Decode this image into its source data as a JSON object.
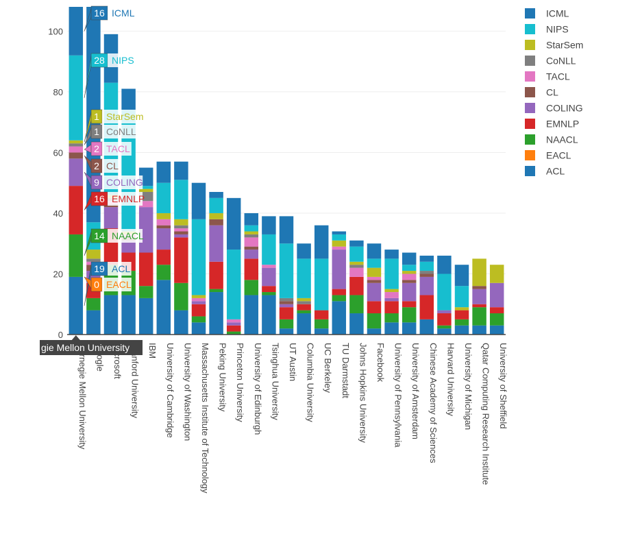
{
  "chart_data": {
    "type": "bar",
    "stacked": true,
    "title": "",
    "xlabel": "",
    "ylabel": "",
    "ylim": [
      0,
      108
    ],
    "yticks": [
      0,
      20,
      40,
      60,
      80,
      100
    ],
    "grid": true,
    "legend_position": "top-right",
    "categories": [
      "Carnegie Mellon University",
      "Google",
      "Microsoft",
      "Stanford University",
      "IBM",
      "University of Cambridge",
      "University of Washington",
      "Massachusetts Institute of Technology",
      "Peking University",
      "Princeton University",
      "University of Edinburgh",
      "Tsinghua University",
      "UT Austin",
      "Columbia University",
      "UC Berkeley",
      "TU Darmstadt",
      "Johns Hopkins University",
      "Facebook",
      "University of Pennsylvania",
      "University of Amsterdam",
      "Chinese Academy of Sciences",
      "Harvard University",
      "University of Michigan",
      "Qatar Computing Research Institute",
      "University of Sheffield"
    ],
    "series": [
      {
        "name": "ACL",
        "color": "#1f77b4",
        "values": [
          19,
          8,
          13,
          13,
          12,
          18,
          8,
          4,
          14,
          0,
          13,
          13,
          2,
          7,
          2,
          11,
          7,
          2,
          4,
          4,
          5,
          2,
          3,
          3,
          3
        ]
      },
      {
        "name": "EACL",
        "color": "#ff7f0e",
        "values": [
          0,
          0,
          0,
          0,
          0,
          0,
          0,
          0,
          0,
          0,
          0,
          0,
          0,
          0,
          0,
          0,
          0,
          0,
          0,
          0,
          0,
          0,
          0,
          0,
          0
        ]
      },
      {
        "name": "NAACL",
        "color": "#2ca02c",
        "values": [
          14,
          4,
          10,
          8,
          4,
          5,
          9,
          2,
          1,
          1,
          5,
          1,
          3,
          1,
          3,
          2,
          6,
          5,
          3,
          5,
          0,
          1,
          2,
          6,
          4
        ]
      },
      {
        "name": "EMNLP",
        "color": "#d62728",
        "values": [
          16,
          5,
          12,
          6,
          11,
          5,
          15,
          4,
          9,
          2,
          7,
          2,
          4,
          2,
          3,
          2,
          6,
          4,
          4,
          2,
          8,
          4,
          3,
          1,
          2
        ]
      },
      {
        "name": "COLING",
        "color": "#9467bd",
        "values": [
          9,
          4,
          7,
          4,
          15,
          7,
          1,
          1,
          12,
          1,
          3,
          6,
          1,
          0,
          0,
          13,
          0,
          6,
          1,
          6,
          6,
          1,
          0,
          5,
          8
        ]
      },
      {
        "name": "CL",
        "color": "#8c564b",
        "values": [
          2,
          2,
          1,
          1,
          0,
          1,
          1,
          0,
          2,
          0,
          1,
          0,
          1,
          0,
          0,
          0,
          0,
          1,
          0,
          1,
          1,
          0,
          0,
          1,
          0
        ]
      },
      {
        "name": "TACL",
        "color": "#e377c2",
        "values": [
          2,
          1,
          1,
          1,
          2,
          2,
          1,
          1,
          0,
          1,
          3,
          1,
          0,
          0,
          0,
          1,
          3,
          1,
          2,
          2,
          0,
          0,
          0,
          0,
          0
        ]
      },
      {
        "name": "CoNLL",
        "color": "#7f7f7f",
        "values": [
          1,
          1,
          1,
          0,
          3,
          0,
          1,
          0,
          0,
          0,
          1,
          0,
          1,
          1,
          0,
          0,
          1,
          0,
          0,
          0,
          1,
          0,
          0,
          0,
          0
        ]
      },
      {
        "name": "StarSem",
        "color": "#bcbd22",
        "values": [
          1,
          3,
          1,
          1,
          1,
          2,
          2,
          1,
          2,
          0,
          1,
          0,
          0,
          1,
          0,
          2,
          1,
          3,
          1,
          1,
          0,
          0,
          1,
          9,
          6
        ]
      },
      {
        "name": "NIPS",
        "color": "#17becf",
        "values": [
          28,
          9,
          37,
          40,
          1,
          10,
          13,
          25,
          5,
          23,
          2,
          10,
          18,
          13,
          17,
          2,
          5,
          3,
          10,
          2,
          3,
          12,
          7,
          0,
          0
        ]
      },
      {
        "name": "ICML",
        "color": "#1f77b4",
        "values": [
          16,
          71,
          16,
          7,
          6,
          7,
          6,
          12,
          2,
          17,
          4,
          6,
          9,
          5,
          11,
          1,
          2,
          5,
          3,
          4,
          2,
          6,
          7,
          0,
          0
        ]
      }
    ],
    "legend_order": [
      "ICML",
      "NIPS",
      "StarSem",
      "CoNLL",
      "TACL",
      "CL",
      "COLING",
      "EMNLP",
      "NAACL",
      "EACL",
      "ACL"
    ],
    "hover": {
      "category_label": "gie Mellon University",
      "labels": [
        {
          "series": "ICML",
          "value": 16
        },
        {
          "series": "NIPS",
          "value": 28
        },
        {
          "series": "StarSem",
          "value": 1
        },
        {
          "series": "CoNLL",
          "value": 1
        },
        {
          "series": "TACL",
          "value": 2
        },
        {
          "series": "CL",
          "value": 2
        },
        {
          "series": "COLING",
          "value": 9
        },
        {
          "series": "EMNLP",
          "value": 16
        },
        {
          "series": "NAACL",
          "value": 14
        },
        {
          "series": "ACL",
          "value": 19
        },
        {
          "series": "EACL",
          "value": 0
        }
      ]
    }
  }
}
